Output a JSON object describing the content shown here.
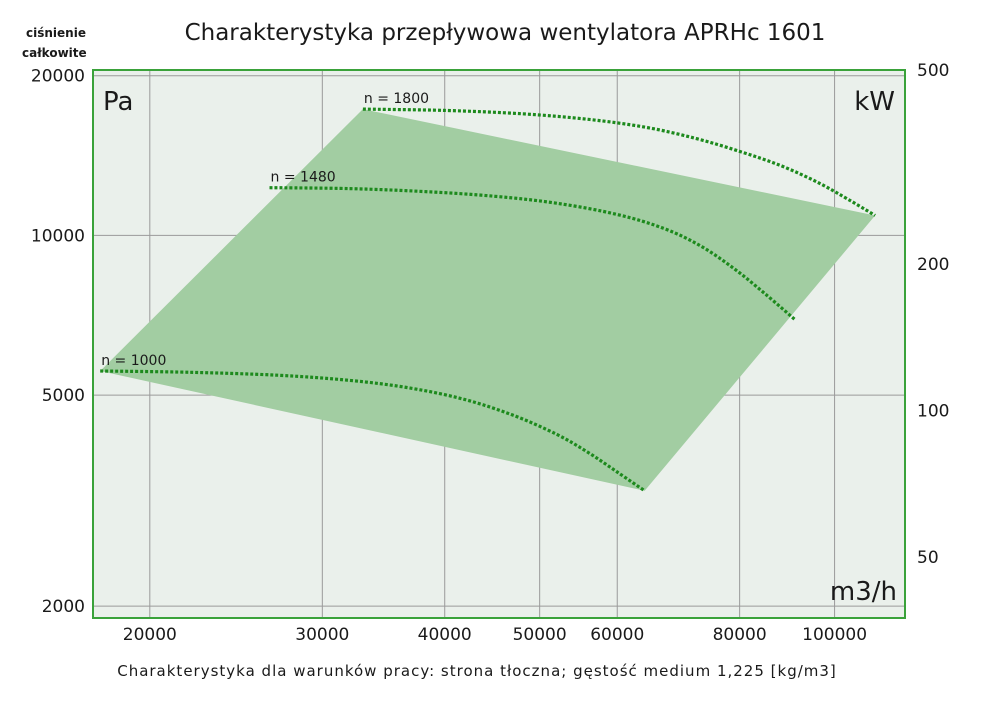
{
  "chart_data": {
    "type": "area",
    "title": "Charakterystyka przepływowa wentylatora APRHc 1601",
    "ylabel_corner_line1": "ciśnienie",
    "ylabel_corner_line2": "całkowite",
    "y_unit": "Pa",
    "y2_unit": "kW",
    "x_unit": "m3/h",
    "x_scale": "log",
    "y_scale": "log",
    "xlim": [
      17500,
      118000
    ],
    "ylim": [
      1900,
      20500
    ],
    "y2lim": [
      37.5,
      500
    ],
    "x_ticks": [
      {
        "value": 20000,
        "label": "20000"
      },
      {
        "value": 30000,
        "label": "30000"
      },
      {
        "value": 40000,
        "label": "40000"
      },
      {
        "value": 50000,
        "label": "50000"
      },
      {
        "value": 60000,
        "label": "60000"
      },
      {
        "value": 80000,
        "label": "80000"
      },
      {
        "value": 100000,
        "label": "100000"
      }
    ],
    "y_ticks": [
      {
        "value": 2000,
        "label": "2000"
      },
      {
        "value": 5000,
        "label": "5000"
      },
      {
        "value": 10000,
        "label": "10000"
      },
      {
        "value": 20000,
        "label": "20000"
      }
    ],
    "y2_ticks": [
      {
        "value": 50,
        "label": "50"
      },
      {
        "value": 100,
        "label": "100"
      },
      {
        "value": 200,
        "label": "200"
      },
      {
        "value": 500,
        "label": "500"
      }
    ],
    "operating_area": [
      [
        17800,
        5550
      ],
      [
        33000,
        17300
      ],
      [
        110000,
        10900
      ],
      [
        64000,
        3300
      ]
    ],
    "series": [
      {
        "name": "n = 1000",
        "label": "n = 1000",
        "x": [
          17800,
          22000,
          27000,
          32000,
          37000,
          42000,
          47000,
          52000,
          56000,
          60000,
          64000
        ],
        "y": [
          5550,
          5520,
          5450,
          5330,
          5150,
          4900,
          4580,
          4220,
          3900,
          3580,
          3300
        ]
      },
      {
        "name": "n = 1480",
        "label": "n = 1480",
        "x": [
          26500,
          32000,
          38000,
          45000,
          52000,
          60000,
          67000,
          73000,
          79000,
          85000,
          91000
        ],
        "y": [
          12300,
          12250,
          12100,
          11850,
          11500,
          10950,
          10300,
          9550,
          8650,
          7750,
          6950
        ]
      },
      {
        "name": "n = 1800",
        "label": "n = 1800",
        "x": [
          33000,
          40000,
          48000,
          56000,
          64000,
          72000,
          80000,
          88000,
          96000,
          104000,
          110000
        ],
        "y": [
          17300,
          17200,
          16950,
          16550,
          16000,
          15250,
          14400,
          13550,
          12600,
          11600,
          10900
        ]
      }
    ],
    "grid": true,
    "area_color": "#a2cda2",
    "curve_color": "#1d8a1d",
    "plot_background": "#eaf0eb",
    "frame_color": "#3aa23a",
    "footnote": "Charakterystyka dla warunków pracy: strona tłoczna; gęstość medium 1,225 [kg/m3]"
  }
}
